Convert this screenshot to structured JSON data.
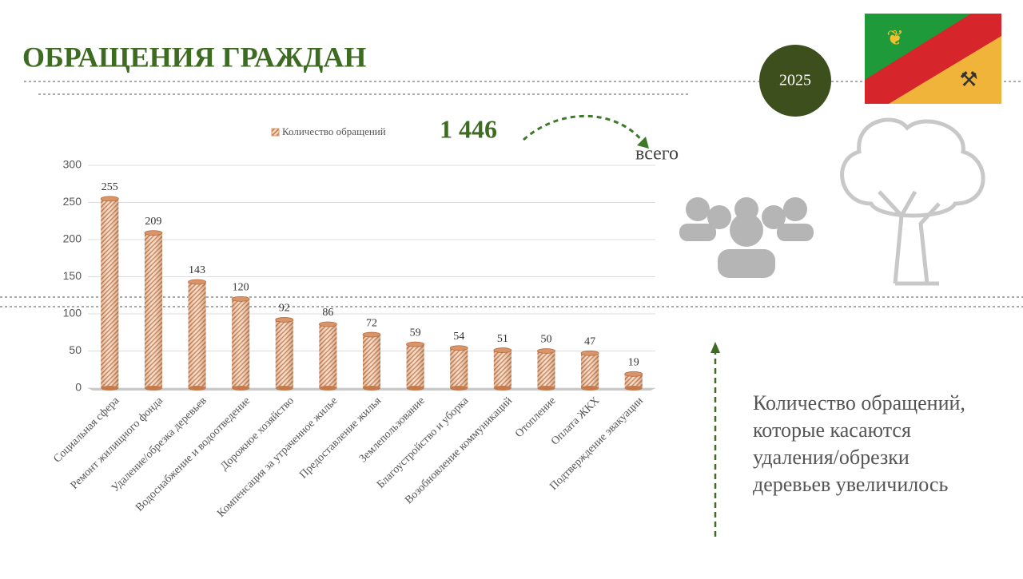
{
  "chart_data": {
    "type": "bar",
    "title": "ОБРАЩЕНИЯ ГРАЖДАН",
    "categories": [
      "Социальная сфера",
      "Ремонт жилищного фонда",
      "Удаление/обрезка деревьев",
      "Водоснабжение и водоотведение",
      "Дорожное хозяйство",
      "Компенсация за утраченное жилье",
      "Предоставление жилья",
      "Землепользование",
      "Благоустройство и уборка",
      "Возобновление коммуникаций",
      "Отопление",
      "Оплата ЖКХ",
      "Подтверждение эвакуации"
    ],
    "series": [
      {
        "name": "Количество обращений",
        "color": "#d9956a",
        "values": [
          255,
          209,
          143,
          120,
          92,
          86,
          72,
          59,
          54,
          51,
          50,
          47,
          19
        ]
      }
    ],
    "ylim": [
      0,
      300
    ],
    "yticks": [
      0,
      50,
      100,
      150,
      200,
      250,
      300
    ],
    "grid": true,
    "total": {
      "value": 1446,
      "label": "1 446"
    },
    "total_caption": "всего"
  },
  "badge": "2025",
  "note": [
    "Количество обращений,",
    "которые касаются",
    "удаления/обрезки",
    "деревьев увеличилось"
  ]
}
